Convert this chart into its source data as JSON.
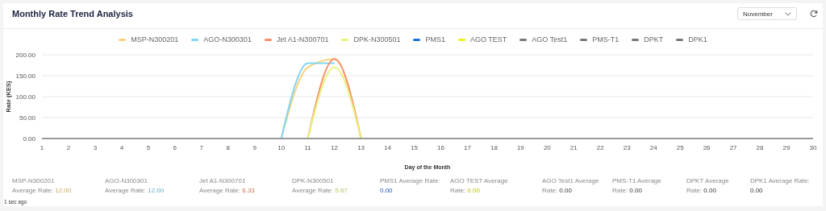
{
  "chart_data": {
    "type": "line",
    "title": "Monthly Rate Trend Analysis",
    "xlabel": "Day of the Month",
    "ylabel": "Rate (KES)",
    "x": [
      1,
      2,
      3,
      4,
      5,
      6,
      7,
      8,
      9,
      10,
      11,
      12,
      13,
      14,
      15,
      16,
      17,
      18,
      19,
      20,
      21,
      22,
      23,
      24,
      25,
      26,
      27,
      28,
      29,
      30
    ],
    "xlim": [
      1,
      30
    ],
    "xticks": [
      1,
      2,
      3,
      4,
      5,
      6,
      7,
      8,
      9,
      10,
      11,
      12,
      13,
      14,
      15,
      16,
      17,
      18,
      19,
      20,
      21,
      22,
      23,
      24,
      25,
      26,
      27,
      28,
      29,
      30
    ],
    "ylim": [
      0,
      200
    ],
    "yticks": [
      {
        "value": 0,
        "label": "0.00"
      },
      {
        "value": 50,
        "label": "50.00"
      },
      {
        "value": 100,
        "label": "100.00"
      },
      {
        "value": 150,
        "label": "150.00"
      },
      {
        "value": 200,
        "label": "200.00"
      }
    ],
    "grid": "y",
    "legend": "top",
    "marker": "none",
    "series": [
      {
        "name": "MSP-N300201",
        "color": "#fcd27c",
        "values": [
          null,
          null,
          null,
          null,
          null,
          null,
          null,
          null,
          null,
          0,
          170,
          190,
          0,
          null,
          null,
          null,
          null,
          null,
          null,
          null,
          null,
          null,
          null,
          null,
          null,
          null,
          null,
          null,
          null,
          null
        ]
      },
      {
        "name": "AGO-N300301",
        "color": "#7fd6f2",
        "values": [
          null,
          null,
          null,
          null,
          null,
          null,
          null,
          null,
          null,
          0,
          180,
          180,
          null,
          null,
          null,
          null,
          null,
          null,
          null,
          null,
          null,
          null,
          null,
          null,
          null,
          null,
          null,
          null,
          null,
          null
        ]
      },
      {
        "name": "Jet A1-N300701",
        "color": "#f9906f",
        "values": [
          null,
          null,
          null,
          null,
          null,
          null,
          null,
          null,
          null,
          null,
          0,
          190,
          0,
          null,
          null,
          null,
          null,
          null,
          null,
          null,
          null,
          null,
          null,
          null,
          null,
          null,
          null,
          null,
          null,
          null
        ]
      },
      {
        "name": "DPK-N300501",
        "color": "#e9f27a",
        "values": [
          null,
          null,
          null,
          null,
          null,
          null,
          null,
          null,
          null,
          null,
          0,
          170,
          0,
          null,
          null,
          null,
          null,
          null,
          null,
          null,
          null,
          null,
          null,
          null,
          null,
          null,
          null,
          null,
          null,
          null
        ]
      },
      {
        "name": "PMS1",
        "color": "#1e6fe0",
        "values": [
          null,
          null,
          null,
          null,
          null,
          null,
          null,
          null,
          null,
          null,
          null,
          null,
          null,
          null,
          null,
          null,
          null,
          null,
          null,
          null,
          null,
          null,
          null,
          null,
          null,
          null,
          null,
          null,
          null,
          null
        ]
      },
      {
        "name": "AGO TEST",
        "color": "#eef01e",
        "values": [
          null,
          null,
          null,
          null,
          null,
          null,
          null,
          null,
          null,
          null,
          null,
          null,
          null,
          null,
          null,
          null,
          null,
          null,
          null,
          null,
          null,
          null,
          null,
          null,
          null,
          null,
          null,
          null,
          null,
          null
        ]
      },
      {
        "name": "AGO Test1",
        "color": "#777777",
        "values": [
          null,
          null,
          null,
          null,
          null,
          null,
          null,
          null,
          null,
          null,
          null,
          null,
          null,
          null,
          null,
          null,
          null,
          null,
          null,
          null,
          null,
          null,
          null,
          null,
          null,
          null,
          null,
          null,
          null,
          null
        ]
      },
      {
        "name": "PMS-T1",
        "color": "#777777",
        "values": [
          null,
          null,
          null,
          null,
          null,
          null,
          null,
          null,
          null,
          null,
          null,
          null,
          null,
          null,
          null,
          null,
          null,
          null,
          null,
          null,
          null,
          null,
          null,
          null,
          null,
          null,
          null,
          null,
          null,
          null
        ]
      },
      {
        "name": "DPKT",
        "color": "#777777",
        "values": [
          null,
          null,
          null,
          null,
          null,
          null,
          null,
          null,
          null,
          null,
          null,
          null,
          null,
          null,
          null,
          null,
          null,
          null,
          null,
          null,
          null,
          null,
          null,
          null,
          null,
          null,
          null,
          null,
          null,
          null
        ]
      },
      {
        "name": "DPK1",
        "color": "#777777",
        "values": [
          0,
          0,
          0,
          0,
          0,
          0,
          0,
          0,
          0,
          0,
          0,
          0,
          0,
          0,
          0,
          0,
          0,
          0,
          0,
          0,
          0,
          0,
          0,
          0,
          0,
          0,
          0,
          0,
          0,
          0
        ]
      }
    ],
    "annotations": [
      "November",
      "MSP-N300201 Average Rate: 12.00",
      "AGO-N300301 Average Rate: 12.00",
      "Jet A1-N300701 Average Rate: 6.33",
      "DPK-N300501 Average Rate: 5.67",
      "PMS1 Average Rate: 0.00",
      "AGO TEST Average Rate: 0.00",
      "AGO Test1 Average Rate: 0.00",
      "PMS-T1 Average Rate: 0.00",
      "DPKT Average Rate: 0.00",
      "DPK1 Average Rate: 0.00",
      "1 sec ago"
    ]
  }
}
